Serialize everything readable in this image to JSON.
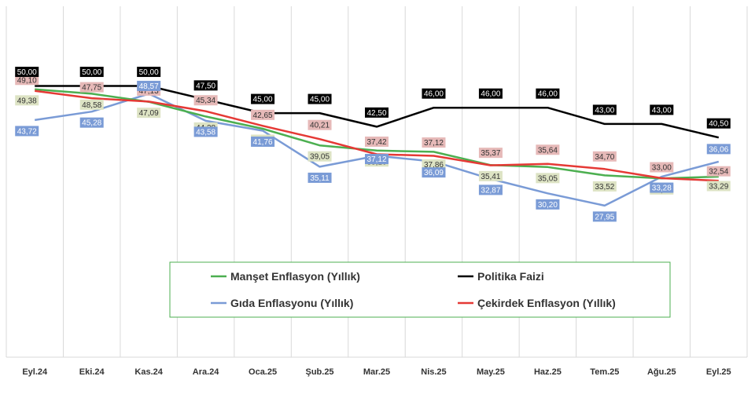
{
  "chart_data": {
    "type": "line",
    "categories": [
      "Eyl.24",
      "Eki.24",
      "Kas.24",
      "Ara.24",
      "Oca.25",
      "Şub.25",
      "Mar.25",
      "Nis.25",
      "May.25",
      "Haz.25",
      "Tem.25",
      "Ağu.25",
      "Eyl.25"
    ],
    "ylim": [
      0,
      55
    ],
    "grid": "vertical",
    "legend_position": "center",
    "series": [
      {
        "name": "Politika Faizi",
        "color": "#000000",
        "label_bg": "#000000",
        "label_fg": "#ffffff",
        "values": [
          50.0,
          50.0,
          50.0,
          47.5,
          45.0,
          45.0,
          42.5,
          46.0,
          46.0,
          46.0,
          43.0,
          43.0,
          40.5
        ],
        "labels": [
          "50,00",
          "50,00",
          "50,00",
          "47,50",
          "45,00",
          "45,00",
          "42,50",
          "46,00",
          "46,00",
          "46,00",
          "43,00",
          "43,00",
          "40,50"
        ]
      },
      {
        "name": "Gıda Enflasyonu (Yıllık)",
        "color": "#7a9bd6",
        "label_bg": "#7a9bd6",
        "label_fg": "#ffffff",
        "values": [
          43.72,
          45.28,
          48.57,
          43.58,
          41.76,
          35.11,
          37.12,
          36.09,
          32.87,
          30.2,
          27.95,
          33.28,
          36.06
        ],
        "labels": [
          "43,72",
          "45,28",
          "48,57",
          "43,58",
          "41,76",
          "35,11",
          "37,12",
          "36,09",
          "32,87",
          "30,20",
          "27,95",
          "33,28",
          "36,06"
        ]
      },
      {
        "name": "Manşet Enflasyon (Yıllık)",
        "color": "#4caf50",
        "label_bg": "#dde3c4",
        "label_fg": "#333333",
        "values": [
          49.38,
          48.58,
          47.09,
          44.38,
          42.12,
          39.05,
          38.1,
          37.86,
          35.41,
          35.05,
          33.52,
          32.95,
          33.29
        ],
        "labels": [
          "49,38",
          "48,58",
          "47,09",
          "44,38",
          "42,12",
          "39,05",
          "38,10",
          "37,86",
          "35,41",
          "35,05",
          "33,52",
          "32,95",
          "33,29"
        ]
      },
      {
        "name": "Çekirdek Enflasyon (Yıllık)",
        "color": "#e53935",
        "label_bg": "#e6b9b8",
        "label_fg": "#333333",
        "values": [
          49.1,
          47.75,
          47.13,
          45.34,
          42.65,
          40.21,
          37.42,
          37.12,
          35.37,
          35.64,
          34.7,
          33.0,
          32.54
        ],
        "labels": [
          "49,10",
          "47,75",
          "47,13",
          "45,34",
          "42,65",
          "40,21",
          "37,42",
          "37,12",
          "35,37",
          "35,64",
          "34,70",
          "33,00",
          "32,54"
        ]
      }
    ],
    "legend": [
      {
        "name": "Manşet Enflasyon (Yıllık)",
        "color": "#4caf50"
      },
      {
        "name": "Politika Faizi",
        "color": "#000000"
      },
      {
        "name": "Gıda Enflasyonu (Yıllık)",
        "color": "#7a9bd6"
      },
      {
        "name": "Çekirdek Enflasyon (Yıllık)",
        "color": "#e53935"
      }
    ]
  }
}
